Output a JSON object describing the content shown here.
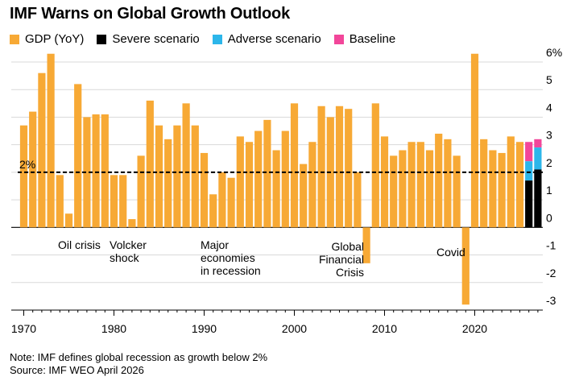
{
  "title": "IMF Warns on Global Growth Outlook",
  "footer": {
    "note": "Note: IMF defines global recession as growth below 2%",
    "source": "Source: IMF WEO April 2026"
  },
  "chart_data": {
    "type": "bar",
    "title": "IMF Warns on Global Growth Outlook",
    "xlabel": "",
    "ylabel": "",
    "ylim": [
      -3,
      6
    ],
    "yticks": [
      -3,
      -2,
      -1,
      0,
      1,
      2,
      3,
      4,
      5,
      6
    ],
    "ytick_labels": [
      "-3",
      "-2",
      "-1",
      "0",
      "1",
      "2",
      "3",
      "4",
      "5",
      "6%"
    ],
    "xticks": [
      1970,
      1980,
      1990,
      2000,
      2010,
      2020
    ],
    "grid": true,
    "legend_position": "top-left",
    "series": [
      {
        "name": "GDP (YoY)",
        "color": "#f7a935"
      },
      {
        "name": "Severe scenario",
        "color": "#000000"
      },
      {
        "name": "Adverse scenario",
        "color": "#2cb6ea"
      },
      {
        "name": "Baseline",
        "color": "#f2469a"
      }
    ],
    "gdp": {
      "years": [
        1970,
        1971,
        1972,
        1973,
        1974,
        1975,
        1976,
        1977,
        1978,
        1979,
        1980,
        1981,
        1982,
        1983,
        1984,
        1985,
        1986,
        1987,
        1988,
        1989,
        1990,
        1991,
        1992,
        1993,
        1994,
        1995,
        1996,
        1997,
        1998,
        1999,
        2000,
        2001,
        2002,
        2003,
        2004,
        2005,
        2006,
        2007,
        2008,
        2009,
        2010,
        2011,
        2012,
        2013,
        2014,
        2015,
        2016,
        2017,
        2018,
        2019,
        2020,
        2021,
        2022,
        2023,
        2024,
        2025
      ],
      "values": [
        3.7,
        4.2,
        5.6,
        6.3,
        1.9,
        0.5,
        5.2,
        4.0,
        4.1,
        4.1,
        1.9,
        1.9,
        0.3,
        2.6,
        4.6,
        3.7,
        3.2,
        3.7,
        4.5,
        3.7,
        2.7,
        1.2,
        2.0,
        1.8,
        3.3,
        3.1,
        3.5,
        3.9,
        2.8,
        3.5,
        4.5,
        2.3,
        3.1,
        4.4,
        4.0,
        4.4,
        4.3,
        2.0,
        -1.3,
        4.5,
        3.3,
        2.6,
        2.8,
        3.1,
        3.1,
        2.8,
        3.4,
        3.2,
        2.6,
        -2.8,
        6.3,
        3.2,
        2.8,
        2.7,
        3.3,
        3.1
      ]
    },
    "scenarios": {
      "years": [
        2026,
        2027
      ],
      "severe": [
        1.7,
        2.1
      ],
      "adverse": [
        2.4,
        2.9
      ],
      "baseline": [
        3.1,
        3.2
      ]
    },
    "reference_line": {
      "value": 2,
      "label": "2%"
    },
    "annotations": [
      {
        "text": [
          "Oil crisis"
        ],
        "year": 1975
      },
      {
        "text": [
          "Volcker",
          "shock"
        ],
        "year": 1982
      },
      {
        "text": [
          "Major",
          "economies",
          "in recession"
        ],
        "year": 1991
      },
      {
        "text": [
          "Global",
          "Financial",
          "Crisis"
        ],
        "year": 2009
      },
      {
        "text": [
          "Covid"
        ],
        "year": 2020
      }
    ]
  }
}
